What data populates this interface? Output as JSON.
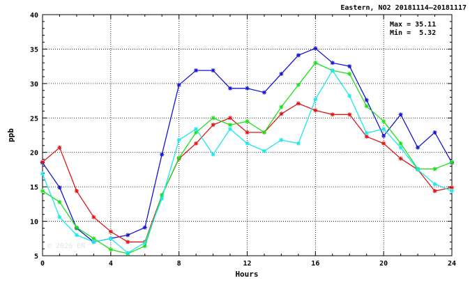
{
  "chart_data": {
    "type": "line",
    "title": "Eastern, NO2 20181114–20181117",
    "xlabel": "Hours",
    "ylabel": "ppb",
    "xlim": [
      0,
      24
    ],
    "ylim": [
      5,
      40
    ],
    "x_ticks": [
      0,
      4,
      8,
      12,
      16,
      20,
      24
    ],
    "y_ticks": [
      5,
      10,
      15,
      20,
      25,
      30,
      35,
      40
    ],
    "grid": true,
    "stats": {
      "max_label": "Max = 35.11",
      "min_label": "Min =  5.32"
    },
    "watermark": "© 2026  EN",
    "x": [
      0,
      1,
      2,
      3,
      4,
      5,
      6,
      7,
      8,
      9,
      10,
      11,
      12,
      13,
      14,
      15,
      16,
      17,
      18,
      19,
      20,
      21,
      22,
      23,
      24
    ],
    "series": [
      {
        "color": "#1414d2",
        "values": [
          18.5,
          14.9,
          9.0,
          7.0,
          7.5,
          8.0,
          9.1,
          19.7,
          29.8,
          31.9,
          31.9,
          29.3,
          29.3,
          28.7,
          31.4,
          34.1,
          35.1,
          33.0,
          32.5,
          27.6,
          22.4,
          25.5,
          20.7,
          22.9,
          18.5
        ]
      },
      {
        "color": "#e11414",
        "values": [
          18.6,
          20.7,
          14.4,
          10.6,
          8.5,
          7.0,
          7.0,
          13.8,
          19.1,
          21.3,
          24.0,
          25.0,
          22.9,
          22.9,
          25.6,
          27.1,
          26.1,
          25.5,
          25.5,
          22.3,
          21.3,
          19.1,
          17.5,
          14.4,
          14.9
        ]
      },
      {
        "color": "#19e119",
        "values": [
          14.4,
          12.8,
          9.1,
          7.5,
          5.9,
          5.3,
          6.4,
          13.8,
          19.2,
          22.9,
          25.0,
          24.0,
          24.5,
          22.9,
          26.6,
          29.8,
          33.0,
          31.9,
          31.4,
          26.7,
          24.5,
          21.3,
          17.6,
          17.6,
          18.6
        ]
      },
      {
        "color": "#19e8e8",
        "values": [
          16.9,
          10.6,
          8.0,
          7.0,
          7.5,
          5.4,
          6.9,
          13.3,
          21.8,
          23.4,
          19.7,
          23.4,
          21.3,
          20.2,
          21.8,
          21.3,
          27.7,
          31.9,
          28.2,
          22.8,
          23.4,
          20.7,
          17.5,
          15.4,
          14.4
        ]
      }
    ]
  }
}
